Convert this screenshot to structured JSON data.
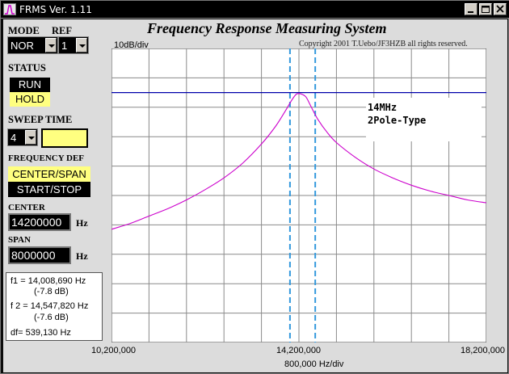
{
  "window": {
    "title": "FRMS  Ver. 1.11"
  },
  "header": {
    "title": "Frequency Response Measuring System",
    "copyright": "Copyright 2001 T.Uebo/JF3HZB all rights reserved.",
    "y_scale": "10dB/div"
  },
  "controls": {
    "mode_label": "MODE",
    "mode_value": "NOR",
    "ref_label": "REF",
    "ref_value": "1",
    "status_label": "STATUS",
    "run_label": "RUN",
    "hold_label": "HOLD",
    "status_active": "HOLD",
    "sweep_time_label": "SWEEP TIME",
    "sweep_time_value": "4",
    "freq_def_label": "FREQUENCY DEF",
    "center_span_label": "CENTER/SPAN",
    "start_stop_label": "START/STOP",
    "freq_def_active": "CENTER/SPAN",
    "center_label": "CENTER",
    "center_value": "14200000",
    "span_label": "SPAN",
    "span_value": "8000000",
    "hz_unit": "Hz"
  },
  "results": {
    "f1": "f1 = 14,008,690 Hz",
    "f1_db": "(-7.8 dB)",
    "f2": "f 2 = 14,547,820 Hz",
    "f2_db": "(-7.6 dB)",
    "df": "df= 539,130 Hz"
  },
  "plot": {
    "annotation_line1": "14MHz",
    "annotation_line2": "2Pole-Type",
    "x_tick_left": "10,200,000",
    "x_tick_center": "14,200,000",
    "x_tick_right": "18,200,000",
    "x_scale": "800,000 Hz/div",
    "colors": {
      "trace": "#cc00cc",
      "ref_line": "#0000aa",
      "markers": "#3399dd",
      "grid": "#8a8a8a",
      "plot_bg": "#ffffff"
    }
  },
  "chart_data": {
    "type": "line",
    "xlim": [
      10200000,
      18200000
    ],
    "ylim_divisions": 10,
    "y_units_per_div": 10,
    "grid": true,
    "reference_level_div_from_top": 1.5,
    "markers_hz": [
      14008690,
      14547820
    ],
    "series": [
      {
        "x": [
          10200000,
          10600000,
          11000000,
          11400000,
          11800000,
          12200000,
          12600000,
          13000000,
          13400000,
          13700000,
          13900000,
          14050000,
          14150000,
          14250000,
          14350000,
          14450000,
          14600000,
          14800000,
          15000000,
          15400000,
          15800000,
          16200000,
          16600000,
          17000000,
          17400000,
          17800000,
          18200000
        ],
        "y_div_from_top": [
          6.15,
          5.95,
          5.7,
          5.45,
          5.15,
          4.8,
          4.4,
          3.9,
          3.25,
          2.65,
          2.15,
          1.75,
          1.55,
          1.55,
          1.65,
          1.95,
          2.4,
          2.85,
          3.2,
          3.7,
          4.1,
          4.4,
          4.65,
          4.85,
          5.0,
          5.15,
          5.25
        ]
      }
    ]
  }
}
